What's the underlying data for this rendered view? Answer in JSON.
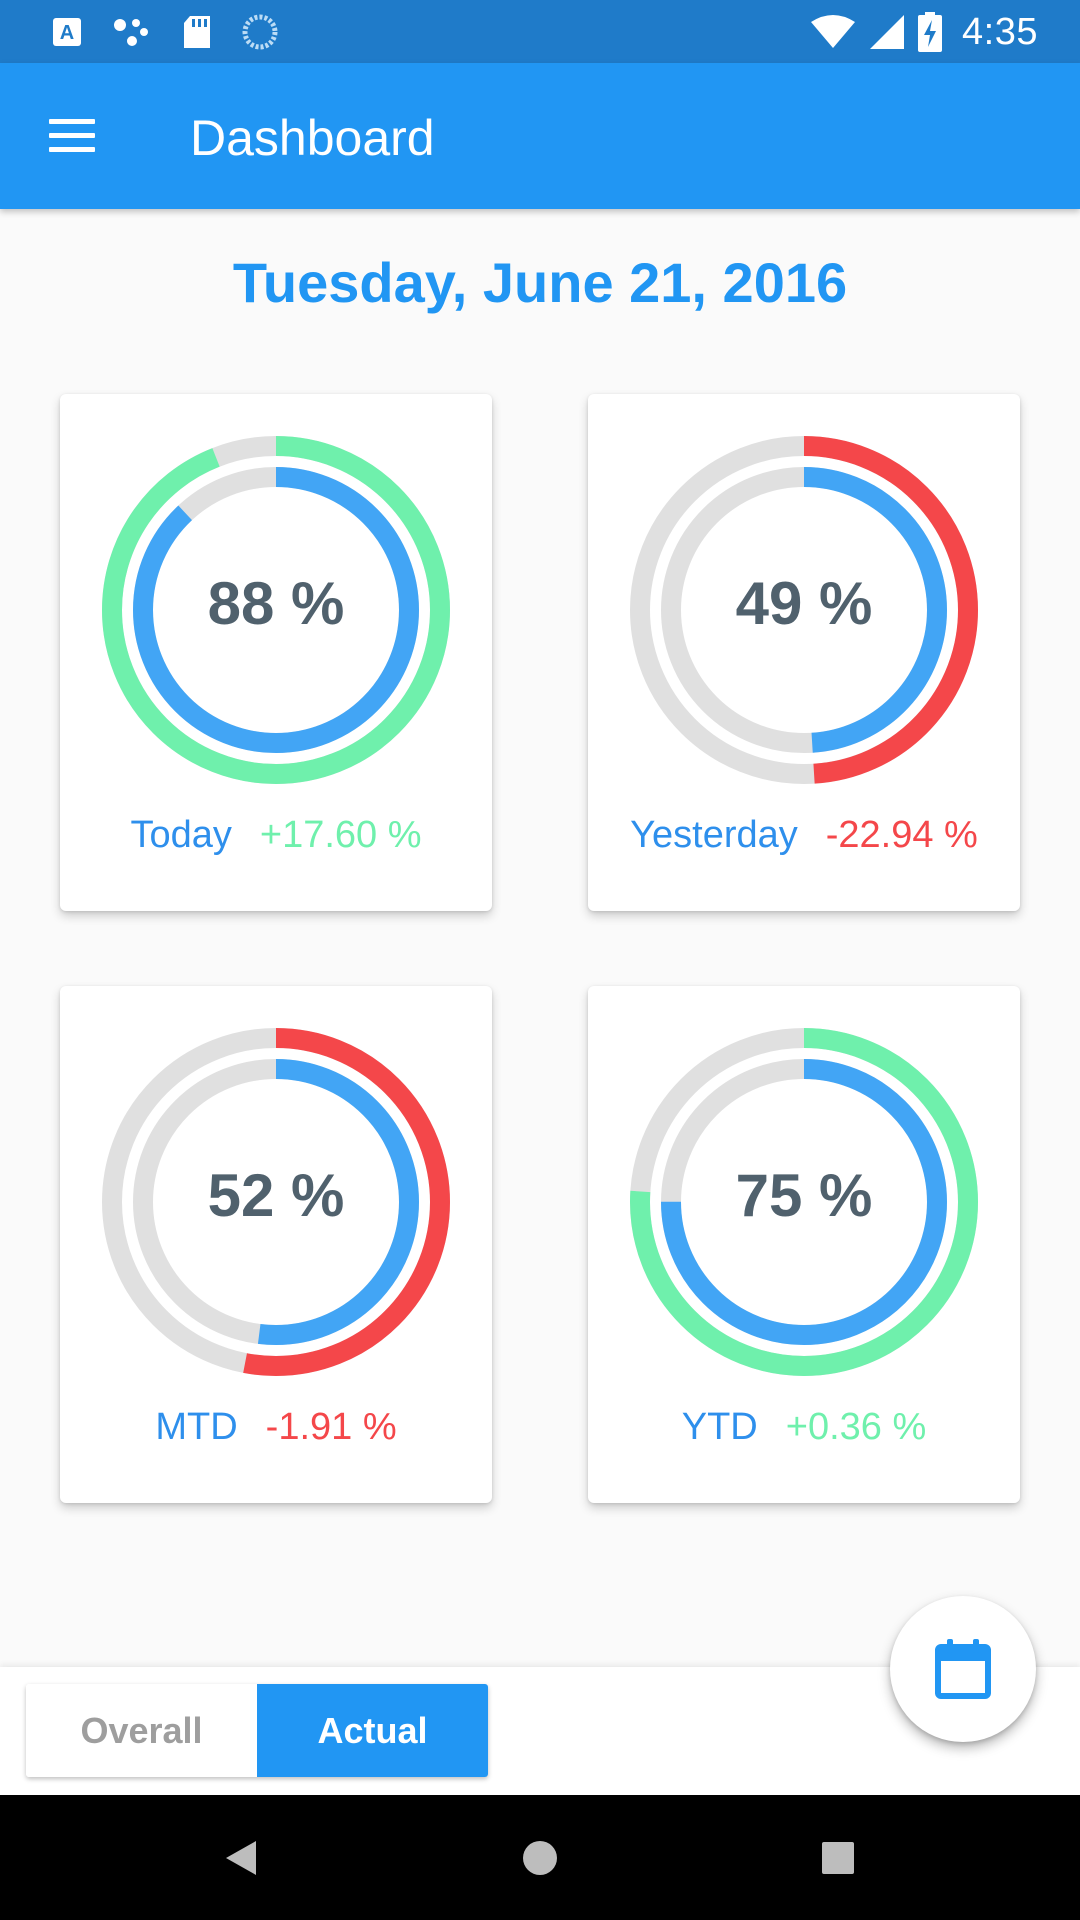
{
  "status_bar": {
    "time": "4:35",
    "icons": [
      "keyboard-icon",
      "dots-icon",
      "sd-card-icon",
      "sync-icon",
      "wifi-icon",
      "signal-icon",
      "battery-charging-icon"
    ]
  },
  "app_bar": {
    "menu_icon": "hamburger-menu-icon",
    "title": "Dashboard"
  },
  "date_heading": "Tuesday, June 21, 2016",
  "colors": {
    "primary": "#2196f3",
    "positive": "#6ff0ac",
    "negative": "#f4474a",
    "track": "#e0e0e0",
    "inner_ring": "#42a5f5",
    "percent_text": "#50616d"
  },
  "cards": [
    {
      "percent_label": "88 %",
      "percent": 88,
      "outer_fraction": 0.94,
      "trend": "positive",
      "period": "Today",
      "change": "+17.60 %"
    },
    {
      "percent_label": "49 %",
      "percent": 49,
      "outer_fraction": 0.49,
      "trend": "negative",
      "period": "Yesterday",
      "change": "-22.94 %"
    },
    {
      "percent_label": "52 %",
      "percent": 52,
      "outer_fraction": 0.53,
      "trend": "negative",
      "period": "MTD",
      "change": "-1.91 %"
    },
    {
      "percent_label": "75 %",
      "percent": 75,
      "outer_fraction": 0.76,
      "trend": "positive",
      "period": "YTD",
      "change": "+0.36 %"
    }
  ],
  "toggle": {
    "options": [
      "Overall",
      "Actual"
    ],
    "selected": "Actual"
  },
  "fab_icon": "calendar-icon",
  "nav_bar": {
    "icons": [
      "back-icon",
      "home-icon",
      "recents-icon"
    ]
  }
}
